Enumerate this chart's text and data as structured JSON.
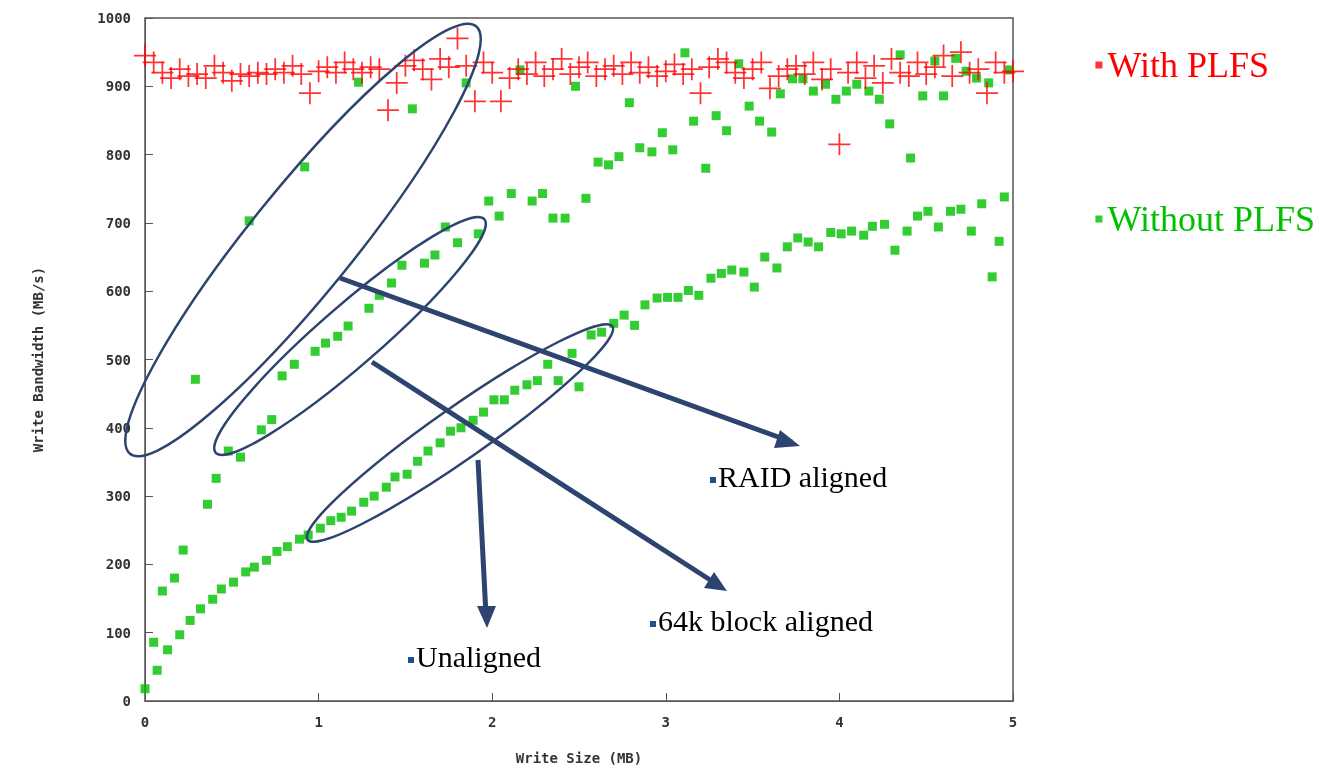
{
  "chart_data": {
    "type": "scatter",
    "xlabel": "Write Size (MB)",
    "ylabel": "Write Bandwidth (MB/s)",
    "xlim": [
      0,
      5
    ],
    "xticks": [
      0,
      1,
      2,
      3,
      4,
      5
    ],
    "ylim": [
      0,
      1000
    ],
    "yticks": [
      0,
      100,
      200,
      300,
      400,
      500,
      600,
      700,
      800,
      900,
      1000
    ],
    "grid": false,
    "legend": "right",
    "annotations": [
      "RAID aligned",
      "64k block aligned",
      "Unaligned"
    ],
    "series": [
      {
        "name": "With PLFS",
        "color": "#ff0000",
        "marker": "cross",
        "x": [
          0,
          0.05,
          0.1,
          0.15,
          0.2,
          0.25,
          0.3,
          0.35,
          0.4,
          0.45,
          0.5,
          0.55,
          0.6,
          0.65,
          0.7,
          0.75,
          0.8,
          0.85,
          0.9,
          0.95,
          1,
          1.05,
          1.1,
          1.15,
          1.2,
          1.25,
          1.3,
          1.35,
          1.4,
          1.45,
          1.5,
          1.55,
          1.6,
          1.65,
          1.7,
          1.75,
          1.8,
          1.85,
          1.9,
          1.95,
          2,
          2.05,
          2.1,
          2.15,
          2.2,
          2.25,
          2.3,
          2.35,
          2.4,
          2.45,
          2.5,
          2.55,
          2.6,
          2.65,
          2.7,
          2.75,
          2.8,
          2.85,
          2.9,
          2.95,
          3,
          3.05,
          3.1,
          3.15,
          3.2,
          3.25,
          3.3,
          3.35,
          3.4,
          3.45,
          3.5,
          3.55,
          3.6,
          3.65,
          3.7,
          3.75,
          3.8,
          3.85,
          3.9,
          3.95,
          4,
          4.05,
          4.1,
          4.15,
          4.2,
          4.25,
          4.3,
          4.35,
          4.4,
          4.45,
          4.5,
          4.55,
          4.6,
          4.65,
          4.7,
          4.75,
          4.8,
          4.85,
          4.9,
          4.95,
          5
        ],
        "values": [
          945,
          935,
          920,
          912,
          925,
          915,
          918,
          912,
          930,
          920,
          908,
          918,
          915,
          920,
          918,
          925,
          920,
          930,
          918,
          890,
          922,
          928,
          920,
          935,
          925,
          920,
          928,
          925,
          865,
          905,
          930,
          938,
          925,
          910,
          940,
          928,
          970,
          930,
          878,
          935,
          920,
          878,
          912,
          925,
          918,
          935,
          915,
          925,
          940,
          918,
          928,
          935,
          915,
          925,
          930,
          918,
          935,
          920,
          928,
          915,
          922,
          932,
          918,
          925,
          890,
          928,
          940,
          935,
          920,
          912,
          925,
          935,
          897,
          915,
          925,
          930,
          918,
          935,
          910,
          925,
          815,
          920,
          935,
          912,
          930,
          905,
          940,
          920,
          915,
          935,
          918,
          928,
          945,
          915,
          950,
          920,
          925,
          890,
          935,
          920,
          922
        ]
      },
      {
        "name": "Without PLFS",
        "color": "#00c000",
        "marker": "square",
        "x": [
          0,
          0.07,
          0.13,
          0.2,
          0.26,
          0.32,
          0.39,
          0.44,
          0.51,
          0.58,
          0.63,
          0.7,
          0.76,
          0.82,
          0.89,
          0.94,
          1.01,
          1.07,
          1.13,
          1.19,
          1.26,
          1.32,
          1.39,
          1.44,
          1.51,
          1.57,
          1.63,
          1.7,
          1.76,
          1.82,
          1.89,
          1.95,
          2.01,
          2.07,
          2.13,
          2.2,
          2.26,
          2.32,
          2.38,
          2.46,
          2.5,
          2.57,
          2.63,
          2.7,
          2.76,
          2.82,
          2.88,
          2.95,
          3.01,
          3.07,
          3.13,
          3.19,
          3.26,
          3.32,
          3.38,
          3.45,
          3.51,
          3.57,
          3.64,
          3.7,
          3.76,
          3.82,
          3.88,
          3.95,
          4.01,
          4.07,
          4.14,
          4.19,
          4.26,
          4.32,
          4.39,
          4.45,
          4.51,
          4.57,
          4.64,
          4.7,
          4.76,
          4.82,
          4.88,
          4.92,
          4.95,
          0.05,
          0.1,
          0.17,
          0.22,
          0.29,
          0.36,
          0.41,
          0.48,
          0.55,
          0.6,
          0.67,
          0.73,
          0.79,
          0.86,
          0.92,
          0.98,
          1.04,
          1.11,
          1.17,
          1.23,
          1.29,
          1.35,
          1.42,
          1.48,
          1.54,
          1.61,
          1.67,
          1.73,
          1.8,
          1.85,
          1.92,
          1.98,
          2.04,
          2.11,
          2.16,
          2.23,
          2.29,
          2.35,
          2.42,
          2.48,
          2.54,
          2.61,
          2.67,
          2.73,
          2.79,
          2.85,
          2.92,
          2.98,
          3.04,
          3.11,
          3.16,
          3.23,
          3.29,
          3.35,
          3.42,
          3.48,
          3.54,
          3.61,
          3.66,
          3.73,
          3.79,
          3.85,
          3.92,
          3.98,
          4.04,
          4.1,
          4.17,
          4.23,
          4.29,
          4.35,
          4.41,
          4.48,
          4.55,
          4.6,
          4.67,
          4.73,
          4.79,
          4.86,
          4.98
        ],
        "values": [
          18,
          45,
          75,
          97,
          118,
          135,
          149,
          164,
          174,
          189,
          196,
          206,
          219,
          226,
          237,
          243,
          253,
          264,
          269,
          278,
          291,
          300,
          313,
          328,
          332,
          351,
          366,
          378,
          395,
          400,
          411,
          423,
          441,
          441,
          455,
          463,
          469,
          493,
          469,
          509,
          460,
          536,
          540,
          553,
          565,
          550,
          580,
          590,
          591,
          591,
          601,
          594,
          619,
          626,
          631,
          628,
          606,
          650,
          634,
          665,
          678,
          672,
          665,
          686,
          684,
          688,
          682,
          695,
          698,
          660,
          688,
          710,
          717,
          694,
          717,
          720,
          688,
          728,
          621,
          673,
          738,
          86,
          161,
          180,
          221,
          471,
          288,
          326,
          366,
          357,
          703,
          397,
          412,
          476,
          493,
          782,
          512,
          524,
          534,
          549,
          906,
          575,
          594,
          612,
          638,
          867,
          641,
          653,
          694,
          671,
          905,
          684,
          732,
          710,
          743,
          924,
          732,
          743,
          707,
          707,
          900,
          736,
          789,
          785,
          797,
          876,
          810,
          804,
          832,
          807,
          949,
          849,
          780,
          857,
          835,
          933,
          871,
          849,
          833,
          889,
          911,
          911,
          893,
          903,
          881,
          893,
          903,
          893,
          881,
          845,
          946,
          795,
          886,
          937,
          886,
          941,
          922,
          912,
          905,
          924
        ]
      }
    ]
  }
}
